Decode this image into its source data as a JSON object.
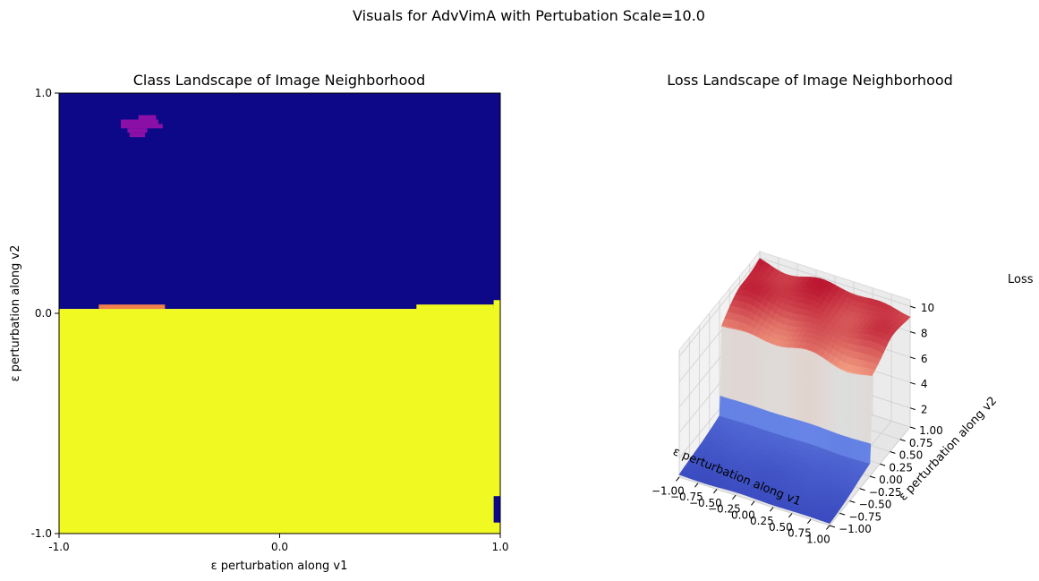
{
  "figure": {
    "suptitle": "Visuals for AdvVimA with Pertubation Scale=10.0"
  },
  "chart_data": [
    {
      "type": "heatmap",
      "title": "Class Landscape of Image Neighborhood",
      "xlabel": "ε perturbation along v1",
      "ylabel": "ε perturbation along v2",
      "xlim": [
        -1.0,
        1.0
      ],
      "ylim": [
        -1.0,
        1.0
      ],
      "xticks": [
        "-1.0",
        "0.0",
        "1.0"
      ],
      "yticks": [
        "1.0",
        "0.0",
        "-1.0"
      ],
      "grid": false,
      "legend": "none",
      "colors": {
        "background_class": "#0d0887",
        "main_class": "#f0f921",
        "minor_class_purple": "#8c10a8",
        "minor_class_orange": "#f0804e"
      },
      "regions": [
        {
          "class": "background_class",
          "x": [
            -1.0,
            1.0
          ],
          "y": [
            0.02,
            1.0
          ]
        },
        {
          "class": "main_class",
          "x": [
            -1.0,
            1.0
          ],
          "y": [
            -1.0,
            0.02
          ]
        },
        {
          "class": "main_class",
          "x": [
            0.62,
            0.97
          ],
          "y": [
            0.02,
            0.04
          ]
        },
        {
          "class": "main_class",
          "x": [
            0.97,
            1.0
          ],
          "y": [
            0.02,
            0.06
          ]
        },
        {
          "class": "minor_class_orange",
          "x": [
            -0.82,
            -0.52
          ],
          "y": [
            0.02,
            0.04
          ]
        },
        {
          "class": "background_class",
          "x": [
            0.97,
            1.0
          ],
          "y": [
            -0.95,
            -0.83
          ]
        },
        {
          "class": "minor_class_purple",
          "x": [
            -0.72,
            -0.55
          ],
          "y": [
            0.86,
            0.88
          ]
        },
        {
          "class": "minor_class_purple",
          "x": [
            -0.64,
            -0.56
          ],
          "y": [
            0.88,
            0.9
          ]
        },
        {
          "class": "minor_class_purple",
          "x": [
            -0.72,
            -0.53
          ],
          "y": [
            0.84,
            0.86
          ]
        },
        {
          "class": "minor_class_purple",
          "x": [
            -0.69,
            -0.6
          ],
          "y": [
            0.82,
            0.84
          ]
        },
        {
          "class": "minor_class_purple",
          "x": [
            -0.68,
            -0.61
          ],
          "y": [
            0.8,
            0.82
          ]
        }
      ]
    },
    {
      "type": "surface",
      "title": "Loss Landscape of Image Neighborhood",
      "xlabel": "ε perturbation along v1",
      "ylabel": "ε perturbation along v2",
      "zlabel": "Loss",
      "xticks": [
        "−1.00",
        "−0.75",
        "−0.50",
        "−0.25",
        "0.00",
        "0.25",
        "0.50",
        "0.75",
        "1.00"
      ],
      "yticks": [
        "−1.00",
        "−0.75",
        "−0.50",
        "−0.25",
        "0.00",
        "0.25",
        "0.50",
        "0.75",
        "1.00"
      ],
      "zticks": [
        "2",
        "4",
        "6",
        "8",
        "10"
      ],
      "xlim": [
        -1.0,
        1.0
      ],
      "ylim": [
        -1.0,
        1.0
      ],
      "zlim": [
        0.5,
        10.5
      ],
      "colormap": "coolwarm",
      "colors": {
        "low": "#3b4cc0",
        "mid": "#dddddd",
        "high": "#b40426"
      },
      "surface": {
        "description_free_values": true,
        "low_loss": 0.7,
        "high_loss": 10.2,
        "transition_v2": 0.02,
        "profile_v2": [
          -1.0,
          -0.5,
          0.0,
          0.02,
          0.05,
          0.5,
          1.0
        ],
        "profile_loss": [
          0.7,
          1.0,
          1.5,
          3.0,
          8.5,
          9.5,
          9.8
        ]
      }
    }
  ]
}
